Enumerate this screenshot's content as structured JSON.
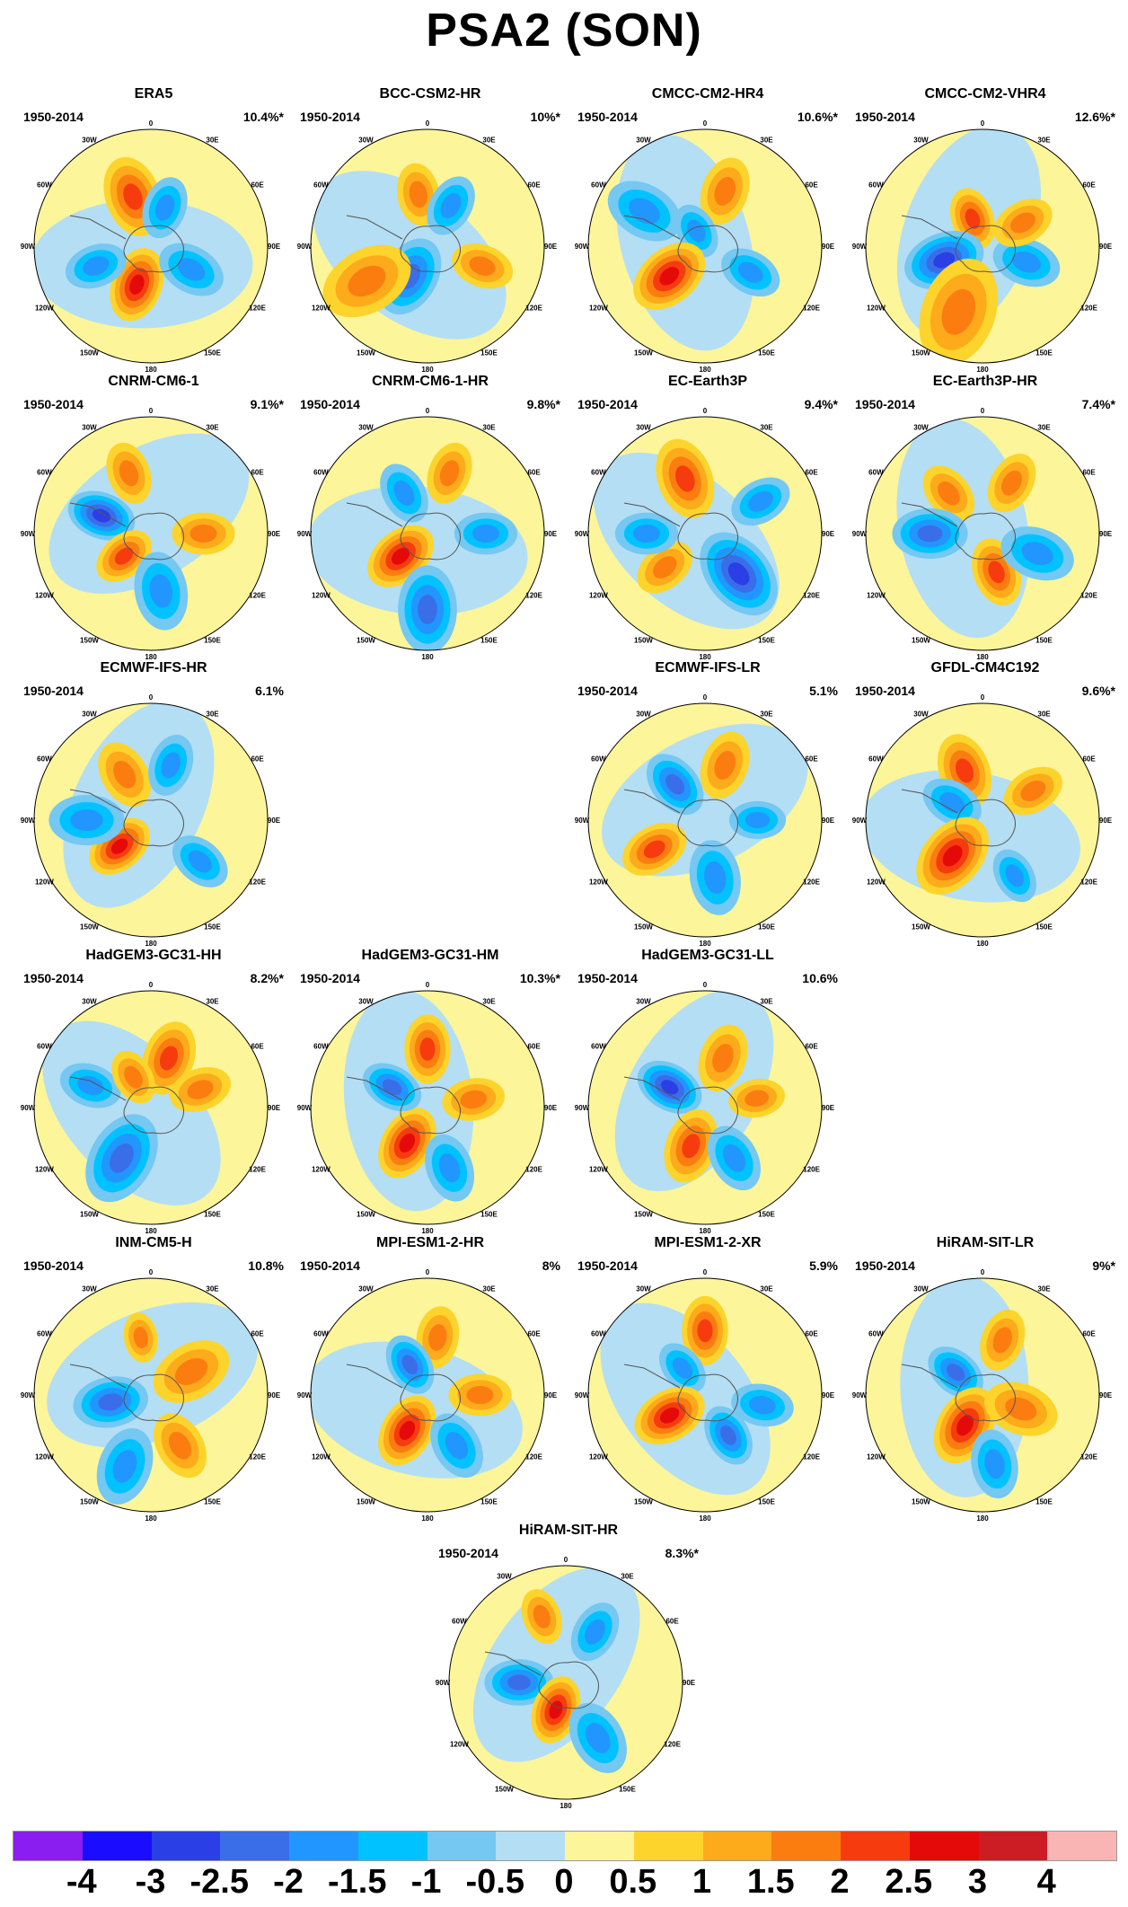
{
  "title": "PSA2 (SON)",
  "longitude_labels": [
    "0",
    "30E",
    "60E",
    "90E",
    "120E",
    "150E",
    "180",
    "150W",
    "120W",
    "90W",
    "60W",
    "30W"
  ],
  "panels": [
    {
      "name": "ERA5",
      "period": "1950-2014",
      "variance": "10.4%*"
    },
    {
      "name": "BCC-CSM2-HR",
      "period": "1950-2014",
      "variance": "10%*"
    },
    {
      "name": "CMCC-CM2-HR4",
      "period": "1950-2014",
      "variance": "10.6%*"
    },
    {
      "name": "CMCC-CM2-VHR4",
      "period": "1950-2014",
      "variance": "12.6%*"
    },
    {
      "name": "CNRM-CM6-1",
      "period": "1950-2014",
      "variance": "9.1%*"
    },
    {
      "name": "CNRM-CM6-1-HR",
      "period": "1950-2014",
      "variance": "9.8%*"
    },
    {
      "name": "EC-Earth3P",
      "period": "1950-2014",
      "variance": "9.4%*"
    },
    {
      "name": "EC-Earth3P-HR",
      "period": "1950-2014",
      "variance": "7.4%*"
    },
    {
      "name": "ECMWF-IFS-HR",
      "period": "1950-2014",
      "variance": "6.1%"
    },
    {
      "name": "ECMWF-IFS-LR",
      "period": "1950-2014",
      "variance": "5.1%"
    },
    {
      "name": "GFDL-CM4C192",
      "period": "1950-2014",
      "variance": "9.6%*"
    },
    {
      "name": "HadGEM3-GC31-HH",
      "period": "1950-2014",
      "variance": "8.2%*"
    },
    {
      "name": "HadGEM3-GC31-HM",
      "period": "1950-2014",
      "variance": "10.3%*"
    },
    {
      "name": "HadGEM3-GC31-LL",
      "period": "1950-2014",
      "variance": "10.6%"
    },
    {
      "name": "INM-CM5-H",
      "period": "1950-2014",
      "variance": "10.8%"
    },
    {
      "name": "MPI-ESM1-2-HR",
      "period": "1950-2014",
      "variance": "8%"
    },
    {
      "name": "MPI-ESM1-2-XR",
      "period": "1950-2014",
      "variance": "5.9%"
    },
    {
      "name": "HiRAM-SIT-LR",
      "period": "1950-2014",
      "variance": "9%*"
    },
    {
      "name": "HiRAM-SIT-HR",
      "period": "1950-2014",
      "variance": "8.3%*"
    }
  ],
  "colorbar": {
    "colors": [
      "#8a1ef0",
      "#1a0dff",
      "#2b3fe6",
      "#3a6ee8",
      "#2196ff",
      "#00c2ff",
      "#74c8f2",
      "#b4def4",
      "#fcf59a",
      "#fdd42c",
      "#fdaa1b",
      "#fb7d10",
      "#f63c0e",
      "#e40a0a",
      "#cc1c24",
      "#f9b4b4"
    ],
    "labels": [
      "-4",
      "-3",
      "-2.5",
      "-2",
      "-1.5",
      "-1",
      "-0.5",
      "0",
      "0.5",
      "1",
      "1.5",
      "2",
      "2.5",
      "3",
      "4"
    ]
  }
}
